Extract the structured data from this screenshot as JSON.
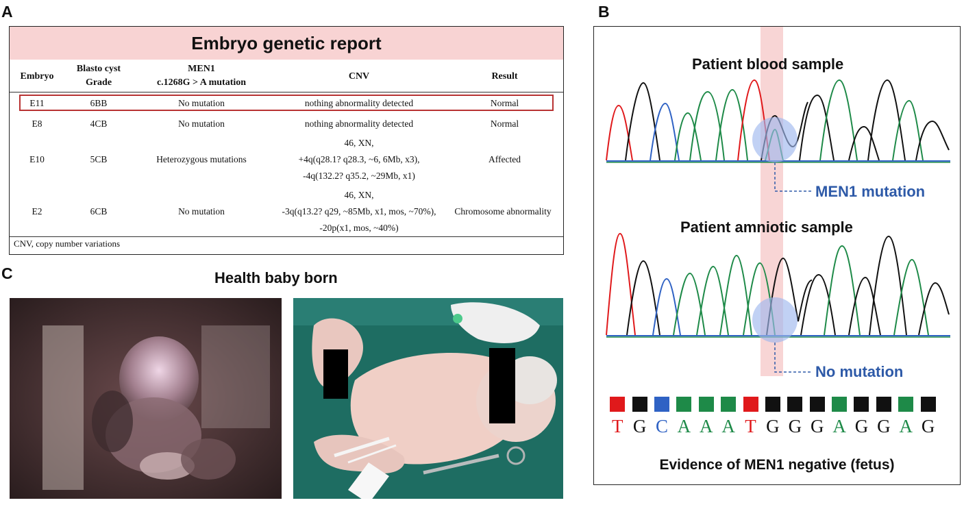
{
  "panels": {
    "a": "A",
    "b": "B",
    "c": "C"
  },
  "table": {
    "title": "Embryo genetic report",
    "headers": {
      "embryo": "Embryo",
      "blastocyst": [
        "Blasto cyst",
        "Grade"
      ],
      "men1": [
        "MEN1",
        "c.1268G > A mutation"
      ],
      "cnv": "CNV",
      "result": "Result"
    },
    "rows": [
      {
        "embryo": "E11",
        "grade": "6BB",
        "mutation": "No mutation",
        "cnv": [
          "nothing abnormality detected"
        ],
        "result": "Normal"
      },
      {
        "embryo": "E8",
        "grade": "4CB",
        "mutation": "No mutation",
        "cnv": [
          "nothing abnormality detected"
        ],
        "result": "Normal"
      },
      {
        "embryo": "E10",
        "grade": "5CB",
        "mutation": "Heterozygous mutations",
        "cnv": [
          "46, XN,",
          "+4q(q28.1? q28.3, ~6, 6Mb, x3),",
          "-4q(132.2? q35.2, ~29Mb, x1)"
        ],
        "result": "Affected"
      },
      {
        "embryo": "E2",
        "grade": "6CB",
        "mutation": "No mutation",
        "cnv": [
          "46, XN,",
          "-3q(q13.2? q29, ~85Mb, x1, mos, ~70%),",
          "-20p(x1, mos, ~40%)"
        ],
        "result": "Chromosome abnormality"
      }
    ],
    "footnote": "CNV, copy number variations"
  },
  "sequencing": {
    "blood_title": "Patient blood sample",
    "blood_annotation": "MEN1 mutation",
    "amniotic_title": "Patient amniotic sample",
    "amniotic_annotation": "No mutation",
    "bases": [
      "T",
      "G",
      "C",
      "A",
      "A",
      "A",
      "T",
      "G",
      "G",
      "G",
      "A",
      "G",
      "G",
      "A",
      "G"
    ],
    "base_colors": {
      "T": "#e0191b",
      "G": "#111111",
      "C": "#2f62c4",
      "A": "#1e8a48"
    },
    "evidence": "Evidence of MEN1 negative (fetus)"
  },
  "section_c": {
    "title": "Health baby born"
  }
}
